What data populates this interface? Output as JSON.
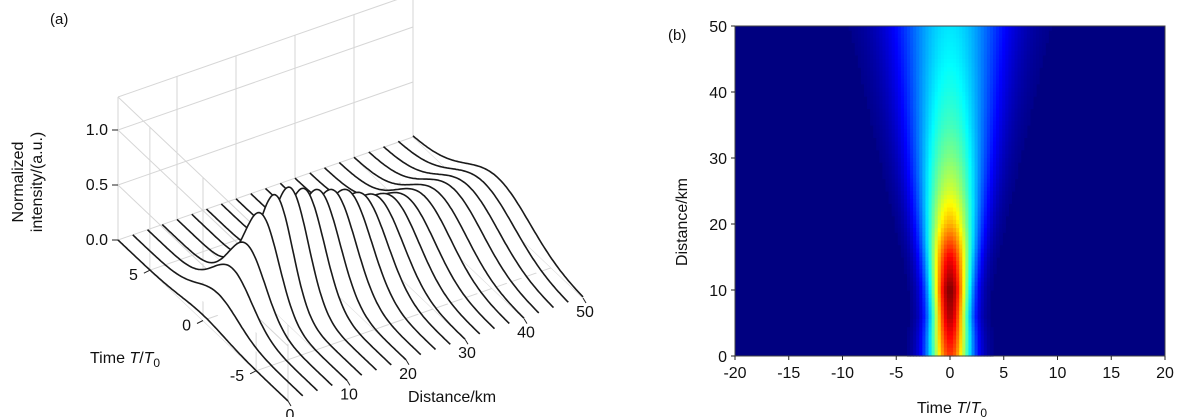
{
  "figure": {
    "panel_a_label": "(a)",
    "panel_b_label": "(b)"
  },
  "chart_data": [
    {
      "panel": "(a)",
      "type": "line",
      "style": "3D waterfall",
      "xlabel": "Distance/km",
      "ylabel_prefix": "Time ",
      "ylabel_var": "T",
      "ylabel_sep": "/",
      "ylabel_var0": "T",
      "ylabel_sub": "0",
      "zlabel_line1": "Normalized",
      "zlabel_line2": "intensity/(a.u.)",
      "xlim": [
        0,
        50
      ],
      "ylim": [
        -8,
        8
      ],
      "zlim": [
        0,
        1.3
      ],
      "xticks": [
        "0",
        "10",
        "20",
        "30",
        "40",
        "50"
      ],
      "xtick_values": [
        0,
        10,
        20,
        30,
        40,
        50
      ],
      "yticks": [
        "5",
        "0",
        "-5"
      ],
      "ytick_values": [
        5,
        0,
        -5
      ],
      "zticks": [
        "0.0",
        "0.5",
        "1.0"
      ],
      "ztick_values": [
        0,
        0.5,
        1.0
      ],
      "grid": true,
      "line_color": "#1a1a1a",
      "distances_km": [
        0,
        2.5,
        5,
        7.5,
        10,
        12.5,
        15,
        17.5,
        20,
        22.5,
        25,
        27.5,
        30,
        32.5,
        35,
        37.5,
        40,
        42.5,
        45,
        47.5,
        50
      ],
      "peak_intensity": [
        0.05,
        0.2,
        0.38,
        0.55,
        0.78,
        0.9,
        0.92,
        0.86,
        0.8,
        0.75,
        0.7,
        0.62,
        0.55,
        0.5,
        0.45,
        0.43,
        0.41,
        0.4,
        0.38,
        0.37,
        0.36
      ],
      "pulse_width_T0": [
        2.0,
        1.9,
        1.8,
        1.7,
        1.6,
        1.5,
        1.6,
        1.7,
        1.8,
        1.9,
        2.0,
        2.1,
        2.2,
        2.3,
        2.4,
        2.5,
        2.6,
        2.7,
        2.8,
        2.9,
        3.0
      ]
    },
    {
      "panel": "(b)",
      "type": "heatmap",
      "colormap": "jet",
      "xlabel_prefix": "Time ",
      "xlabel_var": "T",
      "xlabel_sep": "/",
      "xlabel_var0": "T",
      "xlabel_sub": "0",
      "ylabel": "Distance/km",
      "xlim": [
        -20,
        20
      ],
      "ylim": [
        0,
        50
      ],
      "xticks": [
        "-20",
        "-15",
        "-10",
        "-5",
        "0",
        "5",
        "10",
        "15",
        "20"
      ],
      "xtick_values": [
        -20,
        -15,
        -10,
        -5,
        0,
        5,
        10,
        15,
        20
      ],
      "yticks": [
        "0",
        "10",
        "20",
        "30",
        "40",
        "50"
      ],
      "ytick_values": [
        0,
        10,
        20,
        30,
        40,
        50
      ],
      "intensity_profile": {
        "distance_km": [
          0,
          3,
          6,
          10,
          15,
          20,
          25,
          30,
          35,
          40,
          45,
          50
        ],
        "peak": [
          0.82,
          0.88,
          0.95,
          1.0,
          0.88,
          0.7,
          0.58,
          0.5,
          0.44,
          0.4,
          0.37,
          0.35
        ],
        "width_T0": [
          1.4,
          1.35,
          1.25,
          1.3,
          1.5,
          1.8,
          2.1,
          2.4,
          2.7,
          3.0,
          3.3,
          3.6
        ]
      }
    }
  ]
}
